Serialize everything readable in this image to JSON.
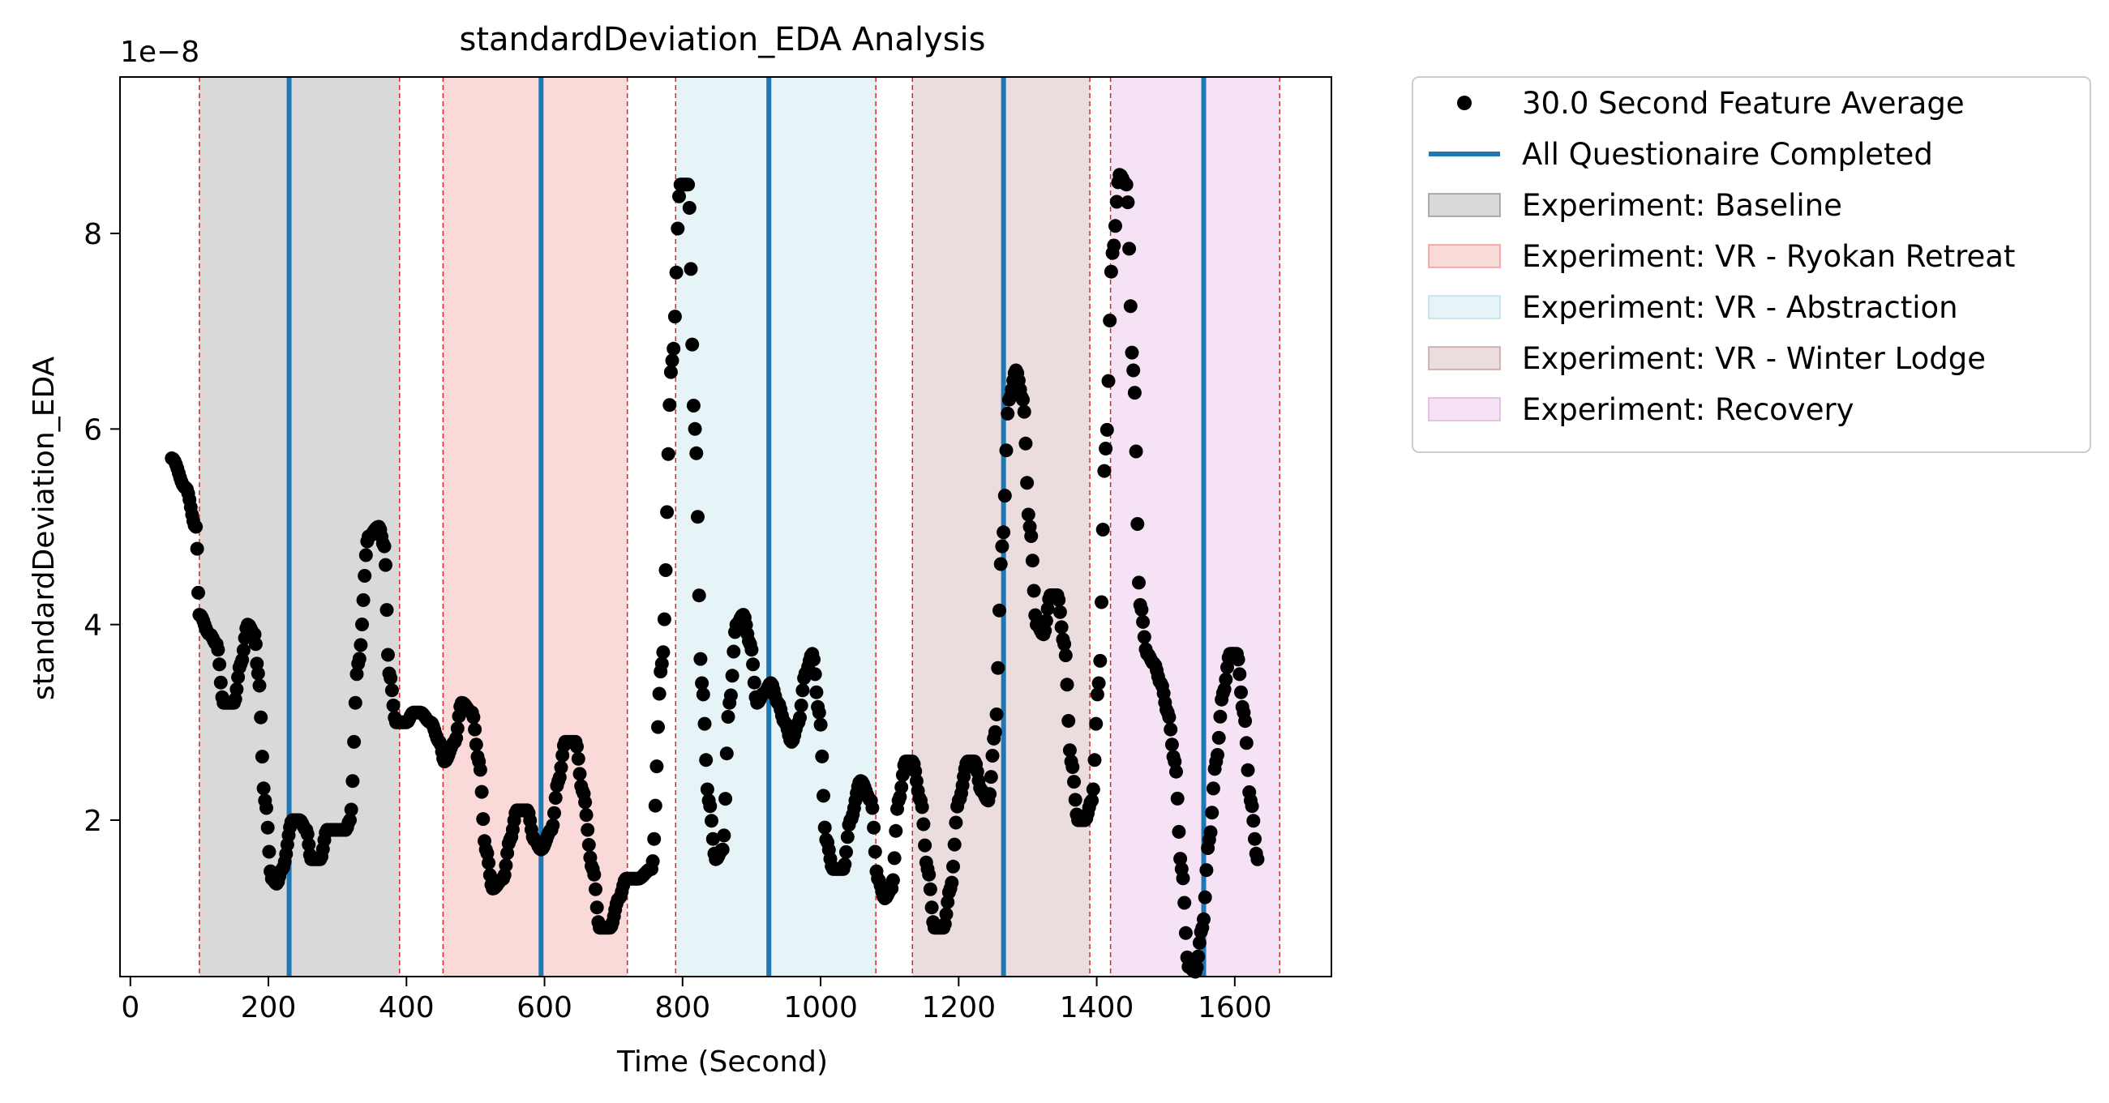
{
  "chart_data": {
    "type": "scatter",
    "title": "standardDeviation_EDA Analysis",
    "xlabel": "Time (Second)",
    "ylabel": "standardDeviation_EDA",
    "y_offset_label": "1e−8",
    "xlim": [
      -15,
      1740
    ],
    "ylim": [
      0.4,
      9.6
    ],
    "x_ticks": [
      0,
      200,
      400,
      600,
      800,
      1000,
      1200,
      1400,
      1600
    ],
    "x_tick_labels": [
      "0",
      "200",
      "400",
      "600",
      "800",
      "1000",
      "1200",
      "1400",
      "1600"
    ],
    "y_ticks": [
      2,
      4,
      6,
      8
    ],
    "y_tick_labels": [
      "2",
      "4",
      "6",
      "8"
    ],
    "grid": false,
    "legend_position": "outside-upper-right",
    "series": [
      {
        "name": "30.0 Second Feature Average",
        "kind": "scatter",
        "color": "#000000",
        "keypoints": [
          [
            60,
            5.7
          ],
          [
            80,
            5.4
          ],
          [
            95,
            5.0
          ],
          [
            100,
            4.1
          ],
          [
            115,
            3.9
          ],
          [
            125,
            3.8
          ],
          [
            135,
            3.2
          ],
          [
            150,
            3.2
          ],
          [
            160,
            3.6
          ],
          [
            170,
            4.0
          ],
          [
            180,
            3.9
          ],
          [
            185,
            3.5
          ],
          [
            195,
            2.2
          ],
          [
            205,
            1.4
          ],
          [
            212,
            1.35
          ],
          [
            220,
            1.5
          ],
          [
            235,
            2.0
          ],
          [
            245,
            2.0
          ],
          [
            255,
            1.9
          ],
          [
            262,
            1.6
          ],
          [
            275,
            1.6
          ],
          [
            285,
            1.9
          ],
          [
            300,
            1.9
          ],
          [
            312,
            1.9
          ],
          [
            318,
            2.0
          ],
          [
            330,
            3.6
          ],
          [
            345,
            4.9
          ],
          [
            360,
            5.0
          ],
          [
            368,
            4.8
          ],
          [
            375,
            3.5
          ],
          [
            385,
            3.0
          ],
          [
            400,
            3.0
          ],
          [
            410,
            3.1
          ],
          [
            420,
            3.1
          ],
          [
            435,
            3.0
          ],
          [
            448,
            2.8
          ],
          [
            455,
            2.6
          ],
          [
            470,
            2.8
          ],
          [
            480,
            3.2
          ],
          [
            495,
            3.1
          ],
          [
            505,
            2.6
          ],
          [
            515,
            1.7
          ],
          [
            525,
            1.3
          ],
          [
            540,
            1.4
          ],
          [
            550,
            1.8
          ],
          [
            560,
            2.1
          ],
          [
            575,
            2.1
          ],
          [
            585,
            1.8
          ],
          [
            595,
            1.7
          ],
          [
            610,
            1.9
          ],
          [
            620,
            2.4
          ],
          [
            630,
            2.8
          ],
          [
            645,
            2.8
          ],
          [
            655,
            2.3
          ],
          [
            670,
            1.5
          ],
          [
            680,
            0.9
          ],
          [
            695,
            0.9
          ],
          [
            708,
            1.2
          ],
          [
            718,
            1.4
          ],
          [
            735,
            1.4
          ],
          [
            755,
            1.5
          ],
          [
            770,
            3.6
          ],
          [
            785,
            6.7
          ],
          [
            797,
            8.5
          ],
          [
            808,
            8.5
          ],
          [
            818,
            6.0
          ],
          [
            828,
            3.4
          ],
          [
            838,
            2.2
          ],
          [
            848,
            1.6
          ],
          [
            858,
            1.7
          ],
          [
            868,
            3.2
          ],
          [
            878,
            4.0
          ],
          [
            888,
            4.1
          ],
          [
            898,
            3.8
          ],
          [
            908,
            3.2
          ],
          [
            918,
            3.3
          ],
          [
            928,
            3.4
          ],
          [
            938,
            3.2
          ],
          [
            948,
            3.0
          ],
          [
            958,
            2.8
          ],
          [
            968,
            3.0
          ],
          [
            978,
            3.5
          ],
          [
            988,
            3.7
          ],
          [
            998,
            3.1
          ],
          [
            1008,
            1.8
          ],
          [
            1018,
            1.5
          ],
          [
            1033,
            1.5
          ],
          [
            1043,
            2.0
          ],
          [
            1058,
            2.4
          ],
          [
            1073,
            2.2
          ],
          [
            1083,
            1.4
          ],
          [
            1093,
            1.2
          ],
          [
            1103,
            1.3
          ],
          [
            1113,
            2.2
          ],
          [
            1123,
            2.6
          ],
          [
            1133,
            2.6
          ],
          [
            1145,
            2.2
          ],
          [
            1155,
            1.5
          ],
          [
            1165,
            0.9
          ],
          [
            1178,
            0.9
          ],
          [
            1188,
            1.3
          ],
          [
            1200,
            2.2
          ],
          [
            1213,
            2.6
          ],
          [
            1223,
            2.6
          ],
          [
            1233,
            2.3
          ],
          [
            1243,
            2.2
          ],
          [
            1253,
            2.9
          ],
          [
            1263,
            4.8
          ],
          [
            1273,
            6.3
          ],
          [
            1283,
            6.6
          ],
          [
            1293,
            6.3
          ],
          [
            1303,
            5.0
          ],
          [
            1313,
            4.0
          ],
          [
            1323,
            3.9
          ],
          [
            1333,
            4.3
          ],
          [
            1343,
            4.3
          ],
          [
            1353,
            3.8
          ],
          [
            1363,
            2.6
          ],
          [
            1373,
            2.0
          ],
          [
            1383,
            2.0
          ],
          [
            1393,
            2.2
          ],
          [
            1403,
            3.4
          ],
          [
            1413,
            5.8
          ],
          [
            1423,
            7.8
          ],
          [
            1433,
            8.6
          ],
          [
            1443,
            8.5
          ],
          [
            1453,
            6.6
          ],
          [
            1463,
            4.2
          ],
          [
            1473,
            3.7
          ],
          [
            1483,
            3.6
          ],
          [
            1493,
            3.4
          ],
          [
            1503,
            3.1
          ],
          [
            1513,
            2.6
          ],
          [
            1523,
            1.5
          ],
          [
            1533,
            0.5
          ],
          [
            1543,
            0.45
          ],
          [
            1553,
            0.9
          ],
          [
            1563,
            1.8
          ],
          [
            1573,
            2.6
          ],
          [
            1583,
            3.3
          ],
          [
            1593,
            3.7
          ],
          [
            1603,
            3.7
          ],
          [
            1613,
            3.1
          ],
          [
            1623,
            2.2
          ],
          [
            1633,
            1.6
          ]
        ]
      },
      {
        "name": "All Questionaire Completed",
        "kind": "vline",
        "color": "#1f77b4",
        "x": [
          230,
          595,
          925,
          1265,
          1555
        ]
      }
    ],
    "regions": [
      {
        "name": "Experiment: Baseline",
        "color": "#808080",
        "start": 100,
        "end": 390
      },
      {
        "name": "Experiment: VR - Ryokan Retreat",
        "color": "#f08080",
        "start": 453,
        "end": 720
      },
      {
        "name": "Experiment: VR - Abstraction",
        "color": "#add8e6",
        "start": 790,
        "end": 1080
      },
      {
        "name": "Experiment: VR - Winter Lodge",
        "color": "#bc8f8f",
        "start": 1133,
        "end": 1390
      },
      {
        "name": "Experiment: Recovery",
        "color": "#dda0dd",
        "start": 1420,
        "end": 1665
      }
    ],
    "region_boundary_color": "#d62728"
  }
}
